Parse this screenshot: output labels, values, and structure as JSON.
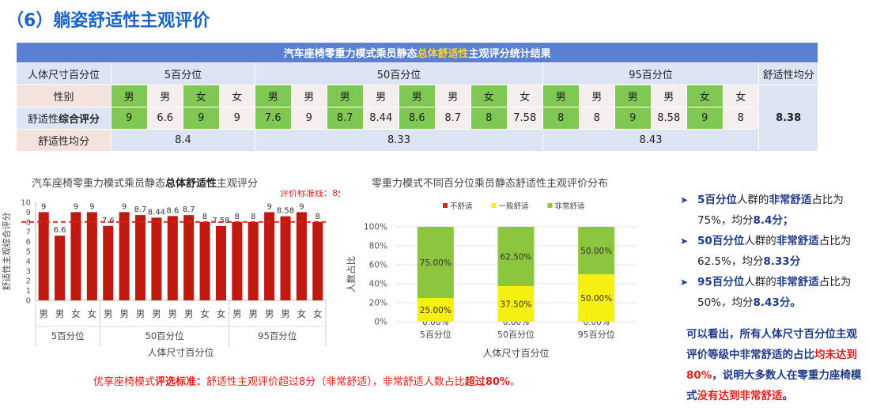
{
  "page_title": "（6）躺姿舒适性主观评价",
  "table": {
    "title_pre": "汽车座椅零重力模式乘员静态",
    "title_hl": "总体舒适性",
    "title_post": "主观评分统计结果",
    "row_labels": {
      "size": "人体尺寸百分位",
      "gender": "性别",
      "score_pre": "舒适性",
      "score_bold": "综合评分",
      "group_avg": "舒适性均分"
    },
    "groups": [
      "5百分位",
      "50百分位",
      "95百分位"
    ],
    "overall_avg_label": "舒适性均分",
    "overall_avg": "8.38",
    "genders": [
      "男",
      "男",
      "女",
      "女",
      "男",
      "男",
      "男",
      "男",
      "男",
      "男",
      "女",
      "女",
      "男",
      "男",
      "男",
      "男",
      "女",
      "女"
    ],
    "scores": [
      "9",
      "6.6",
      "9",
      "9",
      "7.6",
      "9",
      "8.7",
      "8.44",
      "8.6",
      "8.7",
      "8",
      "7.58",
      "8",
      "8",
      "9",
      "8.58",
      "9",
      "8"
    ],
    "group_avgs": [
      "8.4",
      "8.33",
      "8.43"
    ]
  },
  "chart_data": [
    {
      "type": "bar",
      "title_pre": "汽车座椅零重力模式乘员静态",
      "title_bold": "总体舒适性",
      "title_post": "主观评分",
      "categories": [
        "男",
        "男",
        "女",
        "女",
        "男",
        "男",
        "男",
        "男",
        "男",
        "男",
        "女",
        "女",
        "男",
        "男",
        "男",
        "男",
        "女",
        "女"
      ],
      "groups": [
        "5百分位",
        "50百分位",
        "95百分位"
      ],
      "values": [
        9,
        6.6,
        9,
        9,
        7.6,
        9,
        8.7,
        8.44,
        8.6,
        8.7,
        8,
        7.58,
        8,
        8,
        9,
        8.58,
        9,
        8
      ],
      "data_labels": [
        "9",
        "6.6",
        "9",
        "9",
        "7.6",
        "9",
        "8.7",
        "8.44",
        "8.6",
        "8.7",
        "8",
        "7.58",
        "8",
        "8",
        "9",
        "8.58",
        "9",
        "8"
      ],
      "ylabel": "舒适性主观综合评分",
      "xlabel": "人体尺寸百分位",
      "ylim": [
        0,
        10
      ],
      "yticks": [
        "0",
        "1",
        "2",
        "3",
        "4",
        "5",
        "6",
        "7",
        "8",
        "9",
        "10"
      ],
      "reference_line": 8,
      "reference_label": "评价标准线：8分",
      "color": "#c0190f"
    },
    {
      "type": "bar",
      "stacked": true,
      "title": "零重力模式不同百分位乘员静态舒适性主观评价分布",
      "categories": [
        "5百分位",
        "50百分位",
        "95百分位"
      ],
      "series": [
        {
          "name": "不舒适",
          "values": [
            0,
            0,
            0
          ],
          "labels": [
            "0.00%",
            "0.00%",
            "0.00%"
          ],
          "color": "#e0201a"
        },
        {
          "name": "一般舒适",
          "values": [
            25,
            37.5,
            50
          ],
          "labels": [
            "25.00%",
            "37.50%",
            "50.00%"
          ],
          "color": "#f5f012"
        },
        {
          "name": "非常舒适",
          "values": [
            75,
            62.5,
            50
          ],
          "labels": [
            "75.00%",
            "62.50%",
            "50.00%"
          ],
          "color": "#8cc63f"
        }
      ],
      "ylabel": "人数占比",
      "xlabel": "人体尺寸百分位",
      "ylim": [
        0,
        100
      ],
      "yticks": [
        "0%",
        "20%",
        "40%",
        "60%",
        "80%",
        "100%"
      ],
      "legend_position": "top"
    }
  ],
  "bullets": [
    {
      "a": "5百分位",
      "b": "人群的",
      "c": "非常舒适",
      "d": "占比",
      "e": "为75%",
      "f": "，均分",
      "g": "8.4分；"
    },
    {
      "a": "50百分位",
      "b": "人群的",
      "c": "非常舒适",
      "d": "占",
      "e": "比为62.5%",
      "f": "，均分",
      "g": "8.33分"
    },
    {
      "a": "95百分位",
      "b": "人群的",
      "c": "非常舒适",
      "d": "占",
      "e": "比为50%",
      "f": "，均分",
      "g": "8.43分。"
    }
  ],
  "conclusion": {
    "p1": "可以看出，所有人体尺寸百分位主观评价等级中非常舒适的占比",
    "p2": "均未达到80%",
    "p3": "，说明大多数人在零重力座椅模式",
    "p4": "没有达到非常舒适",
    "p5": "。"
  },
  "bottom_note": {
    "p1": "优享座椅模式",
    "p2": "评选标准：",
    "p3": "舒适性主观评价超过8分（非常舒适），非常舒适人数占比",
    "p4": "超过80%",
    "p5": "。"
  },
  "colors": {
    "accent_blue": "#1a64c8",
    "header_blue": "#5b7fd2",
    "green": "#7fc853",
    "red": "#e0201a",
    "bar_red": "#c0190f"
  }
}
